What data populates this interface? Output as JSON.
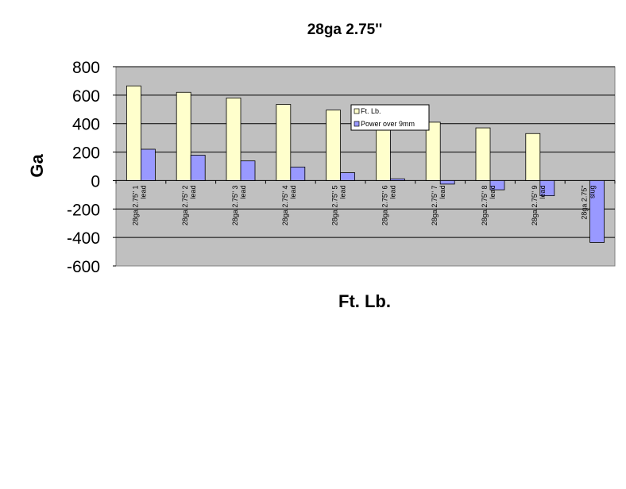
{
  "chart_data": {
    "type": "bar",
    "title": "28ga 2.75''",
    "xlabel": "Ft. Lb.",
    "ylabel": "Ga",
    "ylim": [
      -600,
      800
    ],
    "yticks": [
      800,
      600,
      400,
      200,
      0,
      -200,
      -400,
      -600
    ],
    "grid": true,
    "legend_position": "center-right",
    "categories": [
      [
        "28ga 2.75\" 1",
        "lead"
      ],
      [
        "28ga 2.75\" 2",
        "lead"
      ],
      [
        "28ga 2.75\" 3",
        "lead"
      ],
      [
        "28ga 2.75\" 4",
        "lead"
      ],
      [
        "28ga 2.75\" 5",
        "lead"
      ],
      [
        "28ga 2.75\" 6",
        "lead"
      ],
      [
        "28ga 2.75\" 7",
        "lead"
      ],
      [
        "28ga 2.75\" 8",
        "lead"
      ],
      [
        "28ga 2.75\" 9",
        "lead"
      ],
      [
        "28ga 2.75\"",
        "slug"
      ]
    ],
    "series": [
      {
        "name": "Ft. Lb.",
        "color": "#FFFFCC",
        "values": [
          665,
          620,
          580,
          535,
          495,
          455,
          410,
          370,
          330,
          0
        ]
      },
      {
        "name": "Power over 9mm",
        "color": "#9999FF",
        "values": [
          220,
          178,
          138,
          95,
          55,
          12,
          -25,
          -65,
          -107,
          -435
        ]
      }
    ],
    "colors": {
      "plot_bg": "#C0C0C0",
      "grid": "#000000",
      "bar_stroke": "#000000"
    }
  }
}
